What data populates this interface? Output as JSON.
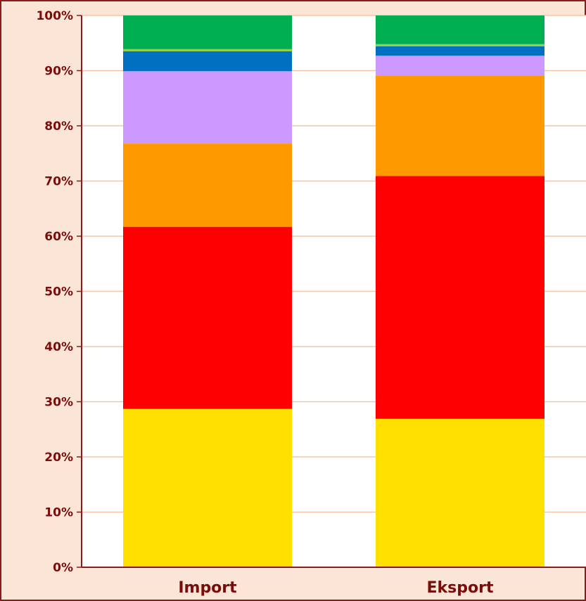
{
  "chart_data": {
    "type": "bar",
    "stacked": true,
    "percent": true,
    "title": "",
    "xlabel": "",
    "ylabel": "",
    "ylim": [
      0,
      100
    ],
    "y_ticks": [
      "0%",
      "10%",
      "20%",
      "30%",
      "40%",
      "50%",
      "60%",
      "70%",
      "80%",
      "90%",
      "100%"
    ],
    "grid": true,
    "legend": "none",
    "categories": [
      "Import",
      "Eksport"
    ],
    "series": [
      {
        "color": "#ffe000",
        "values": [
          28.7,
          26.9
        ]
      },
      {
        "color": "#ff0000",
        "values": [
          33.0,
          44.0
        ]
      },
      {
        "color": "#ff9900",
        "values": [
          15.1,
          18.2
        ]
      },
      {
        "color": "#cc99ff",
        "values": [
          13.1,
          3.6
        ]
      },
      {
        "color": "#0070c0",
        "values": [
          3.6,
          1.7
        ]
      },
      {
        "color": "#92d050",
        "values": [
          0.4,
          0.4
        ]
      },
      {
        "color": "#00b050",
        "values": [
          6.1,
          5.2
        ]
      }
    ],
    "colors": {
      "background": "#fbe5d6",
      "plot_area": "#ffffff",
      "gridline": "#f4c6a8",
      "axis": "#8b1a1a",
      "text": "#7b0c0c"
    }
  }
}
